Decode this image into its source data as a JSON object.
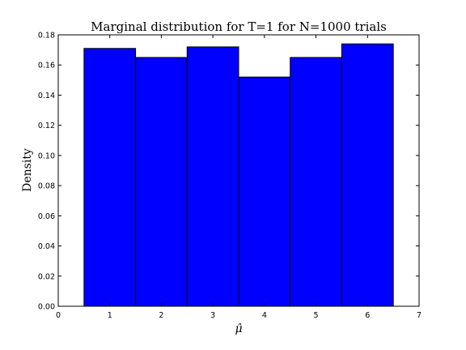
{
  "chart_data": {
    "type": "bar",
    "title": "Marginal distribution for T=1 for N=1000 trials",
    "xlabel": "μ̂",
    "ylabel": "Density",
    "categories": [
      1,
      2,
      3,
      4,
      5,
      6
    ],
    "values": [
      0.171,
      0.165,
      0.172,
      0.152,
      0.165,
      0.174
    ],
    "bar_width": 1.0,
    "xlim": [
      0,
      7
    ],
    "ylim": [
      0,
      0.18
    ],
    "xticks": [
      "0",
      "1",
      "2",
      "3",
      "4",
      "5",
      "6",
      "7"
    ],
    "yticks": [
      "0.00",
      "0.02",
      "0.04",
      "0.06",
      "0.08",
      "0.10",
      "0.12",
      "0.14",
      "0.16",
      "0.18"
    ],
    "bar_color": "#0000ff",
    "edge_color": "#000000",
    "grid": false
  }
}
